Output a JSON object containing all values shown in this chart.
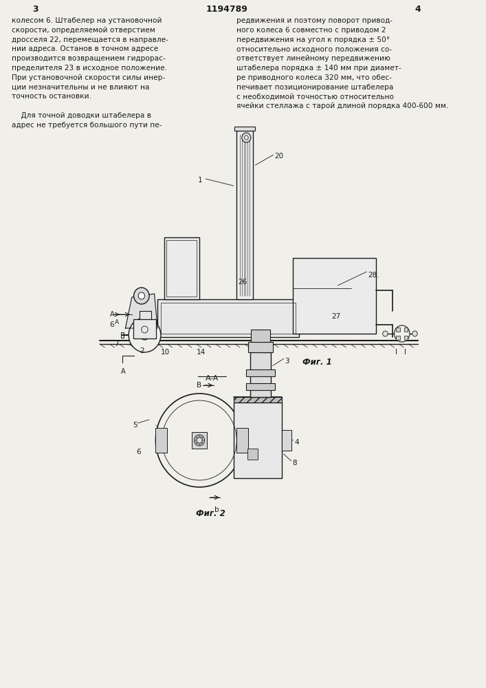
{
  "page_number_left": "3",
  "page_number_right": "4",
  "patent_number": "1194789",
  "bg_color": "#f0efea",
  "text_color": "#1a1a1a",
  "line_color": "#1a1a1a",
  "col1_text": [
    "колесом 6. Штабелер на установочной",
    "скорости, определяемой отверстием",
    "дросселя 22, перемещается в направле-",
    "нии адреса. Останов в точном адресе",
    "производится возвращением гидрорас-",
    "пределителя 23 в исходное положение.",
    "При установочной скорости силы инер-",
    "ции незначительны и не влияют на",
    "точность остановки.",
    "",
    "    Для точной доводки штабелера в",
    "адрес не требуется большого пути пе-"
  ],
  "col2_text": [
    "редвижения и поэтому поворот привод-",
    "ного колеса 6 совместно с приводом 2",
    "передвижения на угол к порядка ± 50°",
    "относительно исходного положения со-",
    "ответствует линейному передвижению",
    "штабелера порядка ± 140 мм при диамет-",
    "ре приводного колеса 320 мм, что обес-",
    "печивает позиционирование штабелера",
    "с необходимой точностью относительно",
    "ячейки стеллажа с тарой длиной порядка 400-600 мм."
  ],
  "fig1_label": "Фиг. 1",
  "fig2_label": "Фиг. 2",
  "section_label": "А-А"
}
